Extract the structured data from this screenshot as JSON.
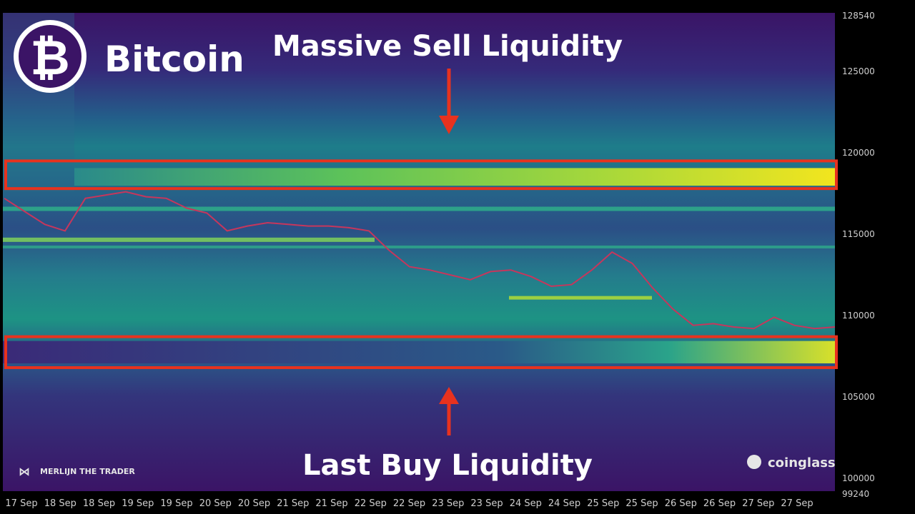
{
  "brand": {
    "name": "Bitcoin",
    "logo_symbol": "₿",
    "watermark_left": "MERLIJN THE TRADER",
    "watermark_right": "coinglass"
  },
  "annotations": {
    "top": "Massive Sell Liquidity",
    "bottom": "Last Buy Liquidity"
  },
  "colors": {
    "highlight_box": "#e8321e",
    "arrow": "#e8321e",
    "heat_low": "#3b1466",
    "heat_mid": "#1f8f8c",
    "heat_high": "#f2e51e",
    "price_line": "#c7365c",
    "axis_text": "#cfcfcf"
  },
  "chart_data": {
    "type": "heatmap",
    "title": "",
    "xlabel": "",
    "ylabel": "",
    "y_ticks": [
      128540,
      125000,
      120000,
      115000,
      110000,
      105000,
      100000,
      99240
    ],
    "ylim": [
      99240,
      128540
    ],
    "x_ticks": [
      "17 Sep",
      "18 Sep",
      "18 Sep",
      "19 Sep",
      "19 Sep",
      "20 Sep",
      "20 Sep",
      "21 Sep",
      "21 Sep",
      "22 Sep",
      "22 Sep",
      "23 Sep",
      "23 Sep",
      "24 Sep",
      "24 Sep",
      "25 Sep",
      "25 Sep",
      "26 Sep",
      "26 Sep",
      "27 Sep",
      "27 Sep"
    ],
    "price_series": {
      "x": [
        0,
        0.5,
        1,
        1.5,
        2,
        2.5,
        3,
        3.5,
        4,
        4.5,
        5,
        5.5,
        6,
        6.5,
        7,
        7.5,
        8,
        8.5,
        9,
        9.5,
        10,
        10.5,
        11,
        11.5,
        12,
        12.5,
        13,
        13.5,
        14,
        14.5,
        15,
        15.5,
        16,
        16.5,
        17,
        17.5,
        18,
        18.5,
        19,
        19.5,
        20,
        20.5
      ],
      "y": [
        117200,
        116400,
        115600,
        115200,
        117200,
        117400,
        117600,
        117300,
        117200,
        116600,
        116300,
        115200,
        115500,
        115700,
        115600,
        115500,
        115500,
        115400,
        115200,
        114000,
        113000,
        112800,
        112500,
        112200,
        112700,
        112800,
        112400,
        111800,
        111900,
        112800,
        113900,
        113200,
        111700,
        110400,
        109400,
        109500,
        109300,
        109200,
        109900,
        109400,
        109200,
        109300
      ]
    },
    "liquidity_zones": [
      {
        "name": "Massive Sell Liquidity",
        "from": 117800,
        "to": 119500
      },
      {
        "name": "Last Buy Liquidity",
        "from": 106800,
        "to": 108700
      }
    ]
  }
}
